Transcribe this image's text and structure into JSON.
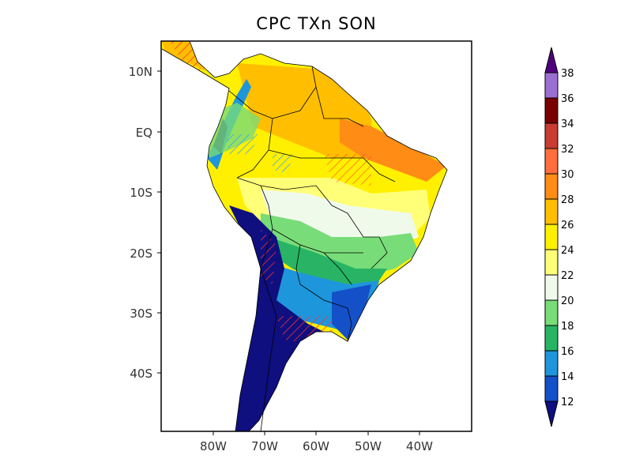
{
  "title": "CPC TXn SON",
  "map": {
    "region": "South America",
    "lon_range": [
      "90W",
      "30W"
    ],
    "lat_range": [
      "15N",
      "50S"
    ],
    "lon_ticks": [
      "80W",
      "70W",
      "60W",
      "50W",
      "40W"
    ],
    "lat_ticks": [
      "10N",
      "EQ",
      "10S",
      "20S",
      "30S",
      "40S"
    ],
    "hatching": "significance stippling (red and blue diagonal lines)"
  },
  "colorbar": {
    "levels": [
      "12",
      "14",
      "16",
      "18",
      "20",
      "22",
      "24",
      "26",
      "28",
      "30",
      "32",
      "34",
      "36",
      "38"
    ],
    "colors": [
      "#0f0f80",
      "#1450c8",
      "#1e96dc",
      "#28b464",
      "#78dc78",
      "#f0faeb",
      "#ffff78",
      "#fff000",
      "#ffbe00",
      "#ff8c14",
      "#ff6e3c",
      "#c83c32",
      "#780000",
      "#9b6ed2",
      "#50007d"
    ]
  }
}
